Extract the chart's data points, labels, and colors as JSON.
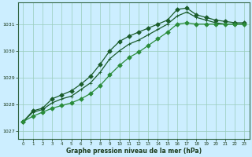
{
  "background_color": "#cceeff",
  "plot_bg_color": "#cceeff",
  "grid_color": "#99ccbb",
  "line_color_1": "#1a5c2a",
  "line_color_2": "#1a5c2a",
  "line_color_3": "#2a8c3a",
  "xlabel": "Graphe pression niveau de la mer (hPa)",
  "xlim": [
    -0.5,
    23.5
  ],
  "ylim": [
    1026.7,
    1031.8
  ],
  "yticks": [
    1027,
    1028,
    1029,
    1030,
    1031
  ],
  "xticks": [
    0,
    1,
    2,
    3,
    4,
    5,
    6,
    7,
    8,
    9,
    10,
    11,
    12,
    13,
    14,
    15,
    16,
    17,
    18,
    19,
    20,
    21,
    22,
    23
  ],
  "series1_x": [
    0,
    1,
    2,
    3,
    4,
    5,
    6,
    7,
    8,
    9,
    10,
    11,
    12,
    13,
    14,
    15,
    16,
    17,
    18,
    19,
    20,
    21,
    22,
    23
  ],
  "series1_y": [
    1027.35,
    1027.75,
    1027.85,
    1028.2,
    1028.35,
    1028.5,
    1028.75,
    1029.05,
    1029.5,
    1030.0,
    1030.35,
    1030.55,
    1030.7,
    1030.85,
    1031.0,
    1031.15,
    1031.55,
    1031.6,
    1031.35,
    1031.25,
    1031.15,
    1031.1,
    1031.05,
    1031.05
  ],
  "series2_x": [
    0,
    1,
    2,
    3,
    4,
    5,
    6,
    7,
    8,
    9,
    10,
    11,
    12,
    13,
    14,
    15,
    16,
    17,
    18,
    19,
    20,
    21,
    22,
    23
  ],
  "series2_y": [
    1027.35,
    1027.7,
    1027.8,
    1028.05,
    1028.2,
    1028.3,
    1028.55,
    1028.8,
    1029.2,
    1029.7,
    1030.0,
    1030.25,
    1030.4,
    1030.6,
    1030.8,
    1031.0,
    1031.3,
    1031.45,
    1031.25,
    1031.15,
    1031.05,
    1031.0,
    1031.0,
    1031.0
  ],
  "series3_x": [
    0,
    1,
    2,
    3,
    4,
    5,
    6,
    7,
    8,
    9,
    10,
    11,
    12,
    13,
    14,
    15,
    16,
    17,
    18,
    19,
    20,
    21,
    22,
    23
  ],
  "series3_y": [
    1027.35,
    1027.55,
    1027.7,
    1027.85,
    1027.95,
    1028.05,
    1028.2,
    1028.4,
    1028.7,
    1029.1,
    1029.45,
    1029.75,
    1029.95,
    1030.2,
    1030.45,
    1030.7,
    1031.0,
    1031.05,
    1031.0,
    1031.0,
    1031.0,
    1031.0,
    1031.0,
    1031.0
  ]
}
